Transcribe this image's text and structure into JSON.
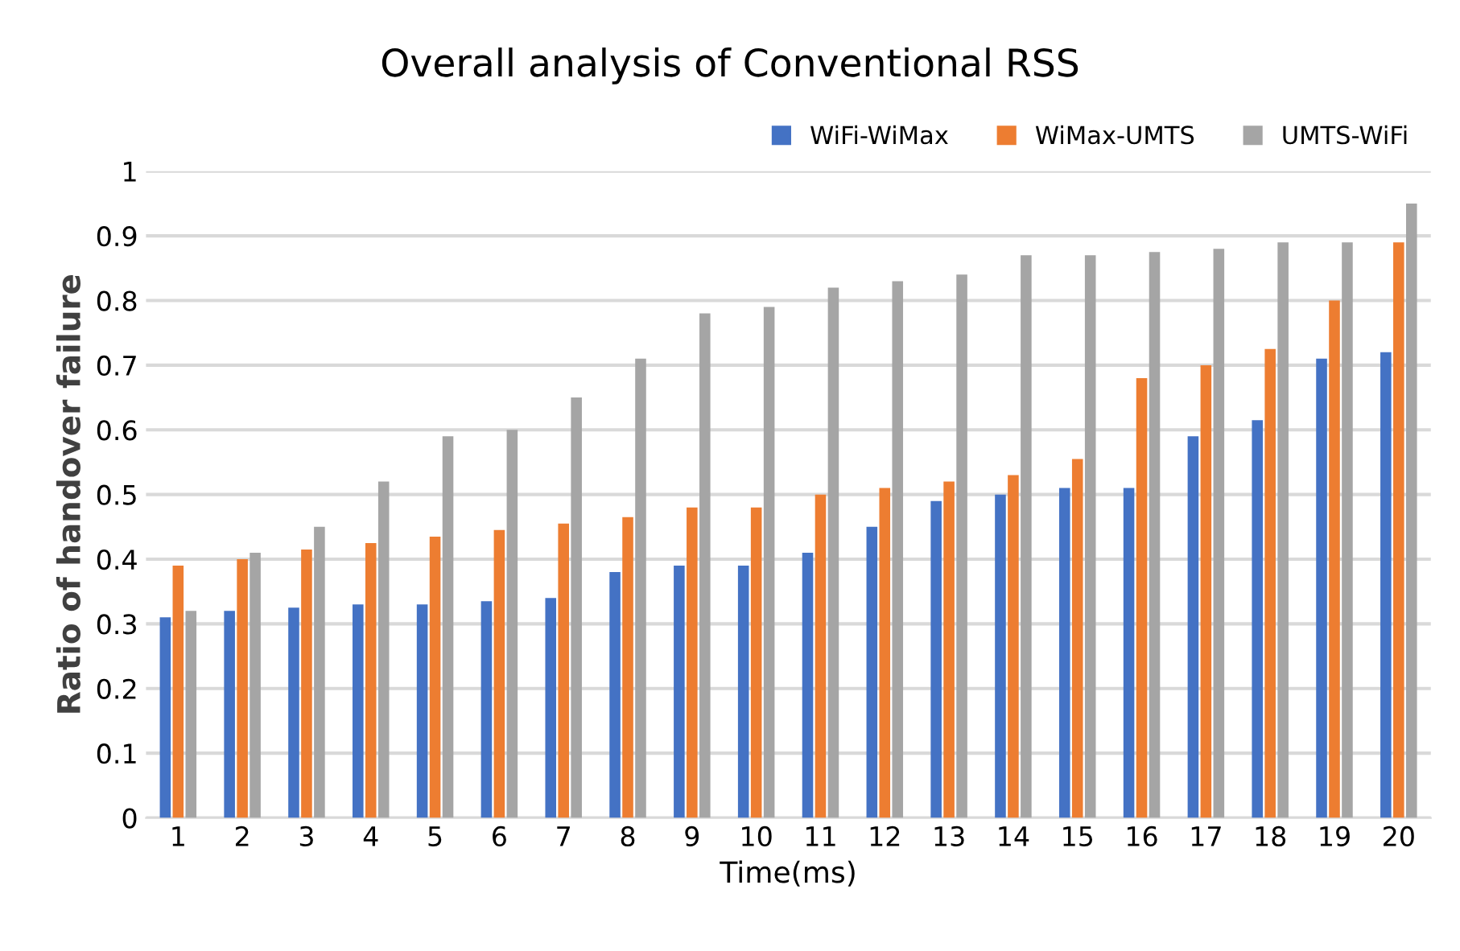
{
  "chart_data": {
    "type": "bar",
    "title": "Overall analysis of Conventional RSS",
    "xlabel": "Time(ms)",
    "ylabel": "Ratio of handover failure",
    "categories": [
      "1",
      "2",
      "3",
      "4",
      "5",
      "6",
      "7",
      "8",
      "9",
      "10",
      "11",
      "12",
      "13",
      "14",
      "15",
      "16",
      "17",
      "18",
      "19",
      "20"
    ],
    "series": [
      {
        "name": "WiFi-WiMax",
        "color": "#4472c4",
        "values": [
          0.31,
          0.32,
          0.325,
          0.33,
          0.33,
          0.335,
          0.34,
          0.38,
          0.39,
          0.39,
          0.41,
          0.45,
          0.49,
          0.5,
          0.51,
          0.51,
          0.59,
          0.615,
          0.71,
          0.72
        ]
      },
      {
        "name": "WiMax-UMTS",
        "color": "#ed7d31",
        "values": [
          0.39,
          0.4,
          0.415,
          0.425,
          0.435,
          0.445,
          0.455,
          0.465,
          0.48,
          0.48,
          0.5,
          0.51,
          0.52,
          0.53,
          0.555,
          0.68,
          0.7,
          0.725,
          0.8,
          0.89
        ]
      },
      {
        "name": "UMTS-WiFi",
        "color": "#a5a5a5",
        "values": [
          0.32,
          0.41,
          0.45,
          0.52,
          0.59,
          0.6,
          0.65,
          0.71,
          0.78,
          0.79,
          0.82,
          0.83,
          0.84,
          0.87,
          0.87,
          0.875,
          0.88,
          0.89,
          0.89,
          0.95
        ]
      }
    ],
    "ylim": [
      0,
      1
    ],
    "yticks": [
      {
        "value": 0,
        "label": "0"
      },
      0.1,
      0.2,
      0.3,
      0.4,
      0.5,
      0.6,
      0.7,
      0.8,
      0.9,
      {
        "value": 1,
        "label": "1"
      }
    ],
    "grid": "y",
    "legend": "top right"
  }
}
